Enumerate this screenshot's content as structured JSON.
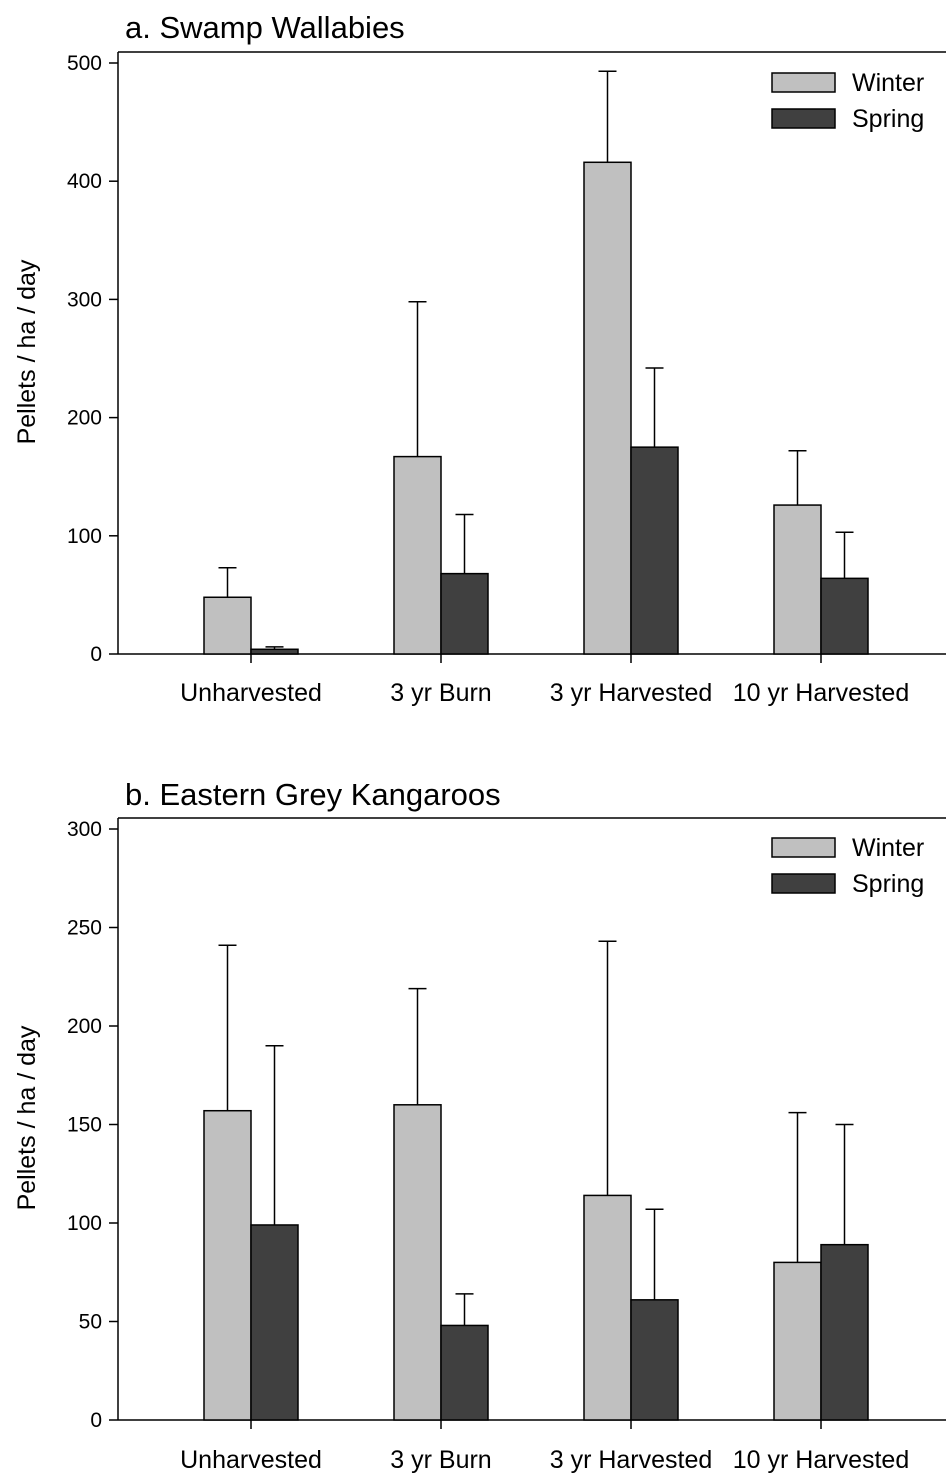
{
  "chart_data": [
    {
      "type": "bar",
      "title": "a. Swamp Wallabies",
      "xlabel": "",
      "ylabel": "Pellets / ha / day",
      "categories": [
        "Unharvested",
        "3 yr Burn",
        "3 yr Harvested",
        "10 yr Harvested"
      ],
      "series": [
        {
          "name": "Winter",
          "color": "#c0c0c0",
          "values": [
            48,
            167,
            416,
            126
          ],
          "error_upper": [
            73,
            298,
            493,
            172
          ]
        },
        {
          "name": "Spring",
          "color": "#404040",
          "values": [
            4,
            68,
            175,
            64
          ],
          "error_upper": [
            6,
            118,
            242,
            103
          ]
        }
      ],
      "ylim": [
        0,
        500
      ],
      "yticks": [
        0,
        100,
        200,
        300,
        400,
        500
      ],
      "grid": false,
      "legend": "top-right"
    },
    {
      "type": "bar",
      "title": "b. Eastern Grey Kangaroos",
      "xlabel": "",
      "ylabel": "Pellets / ha / day",
      "categories": [
        "Unharvested",
        "3 yr Burn",
        "3 yr Harvested",
        "10 yr Harvested"
      ],
      "series": [
        {
          "name": "Winter",
          "color": "#c0c0c0",
          "values": [
            157,
            160,
            114,
            80
          ],
          "error_upper": [
            241,
            219,
            243,
            156
          ]
        },
        {
          "name": "Spring",
          "color": "#404040",
          "values": [
            99,
            48,
            61,
            89
          ],
          "error_upper": [
            190,
            64,
            107,
            150
          ]
        }
      ],
      "ylim": [
        0,
        300
      ],
      "yticks": [
        0,
        50,
        100,
        150,
        200,
        250,
        300
      ],
      "grid": false,
      "legend": "top-right"
    }
  ]
}
